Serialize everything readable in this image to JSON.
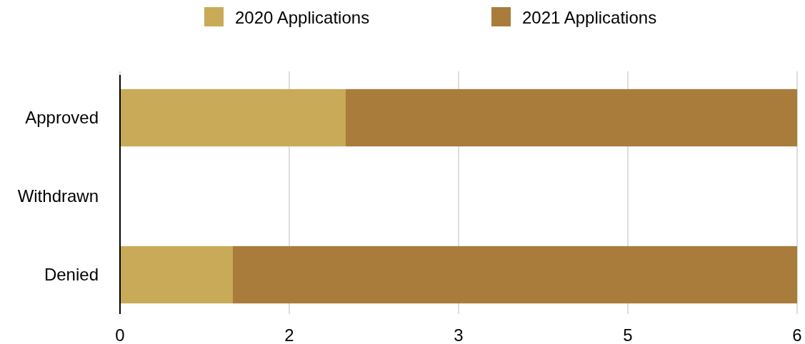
{
  "chart_data": {
    "type": "bar",
    "orientation": "horizontal",
    "stacked": true,
    "categories": [
      "Approved",
      "Withdrawn",
      "Denied"
    ],
    "series": [
      {
        "name": "2020 Applications",
        "color": "#c8aa58",
        "values": [
          2,
          0,
          1
        ]
      },
      {
        "name": "2021 Applications",
        "color": "#a97c3b",
        "values": [
          4,
          0,
          5
        ]
      }
    ],
    "xlim": [
      0,
      6
    ],
    "xticks": [
      0,
      {
        "value": 1.5,
        "label": "2"
      },
      3,
      {
        "value": 4.5,
        "label": "5"
      },
      6
    ],
    "grid": "x",
    "legend": "top"
  }
}
